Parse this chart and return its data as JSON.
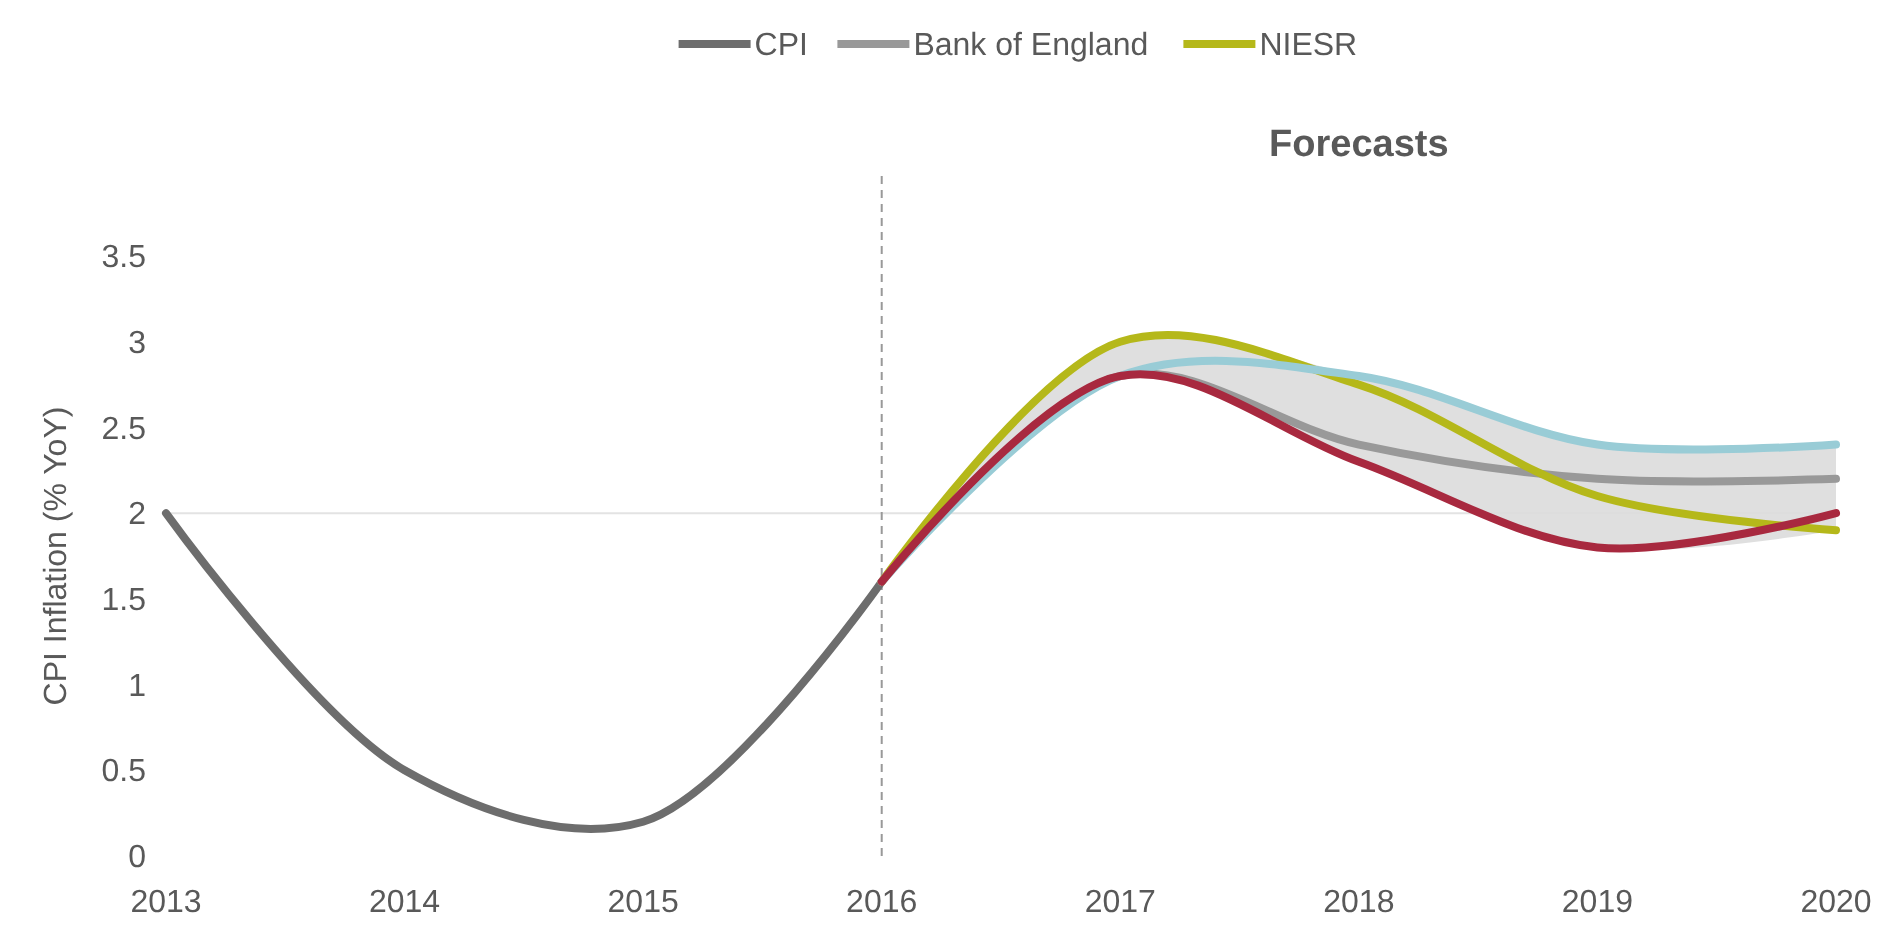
{
  "chart_data": {
    "type": "line",
    "ylabel": "CPI Inflation (% YoY)",
    "annotations": [
      "Forecasts"
    ],
    "x": [
      2013,
      2014,
      2015,
      2016
    ],
    "xlim": [
      2013,
      2020
    ],
    "xticks": [
      2013,
      2014,
      2015,
      2016,
      2017,
      2018,
      2019,
      2020
    ],
    "ylim": [
      0,
      3.5
    ],
    "yticks": [
      0,
      0.5,
      1,
      1.5,
      2,
      2.5,
      3,
      3.5
    ],
    "legend": "top",
    "marker": "none",
    "line_style": "solid",
    "grid": false,
    "ref_lines": [
      {
        "axis": "x",
        "value": 2016,
        "color": "#999999",
        "line_style": "dashed"
      },
      {
        "axis": "y",
        "value": 2,
        "color": "#e3e3e3",
        "line_style": "solid"
      }
    ],
    "series": [
      {
        "name": "CPI",
        "color": "#6d6d6d",
        "values": [
          2.0,
          0.5,
          0.2,
          1.6
        ]
      },
      {
        "name": "Bank of England",
        "color": "#999999",
        "x": [
          2016,
          2017,
          2018,
          2019,
          2020
        ],
        "values": [
          1.6,
          2.8,
          2.4,
          2.2,
          2.2
        ],
        "lower": [
          1.6,
          2.8,
          2.3,
          1.8,
          1.9
        ],
        "upper": [
          1.6,
          3.0,
          2.8,
          2.4,
          2.4
        ]
      },
      {
        "name": "NIESR",
        "color": "#b5b81a",
        "x": [
          2016,
          2017,
          2018,
          2019,
          2020
        ],
        "values": [
          1.6,
          3.0,
          2.75,
          2.1,
          1.9
        ]
      },
      {
        "color": "#99ccd6",
        "x": [
          2016,
          2017,
          2018,
          2019,
          2020
        ],
        "values": [
          1.6,
          2.8,
          2.8,
          2.4,
          2.4
        ]
      },
      {
        "color": "#a8293f",
        "x": [
          2016,
          2017,
          2018,
          2019,
          2020
        ],
        "values": [
          1.6,
          2.8,
          2.3,
          1.8,
          2.0
        ]
      }
    ]
  }
}
